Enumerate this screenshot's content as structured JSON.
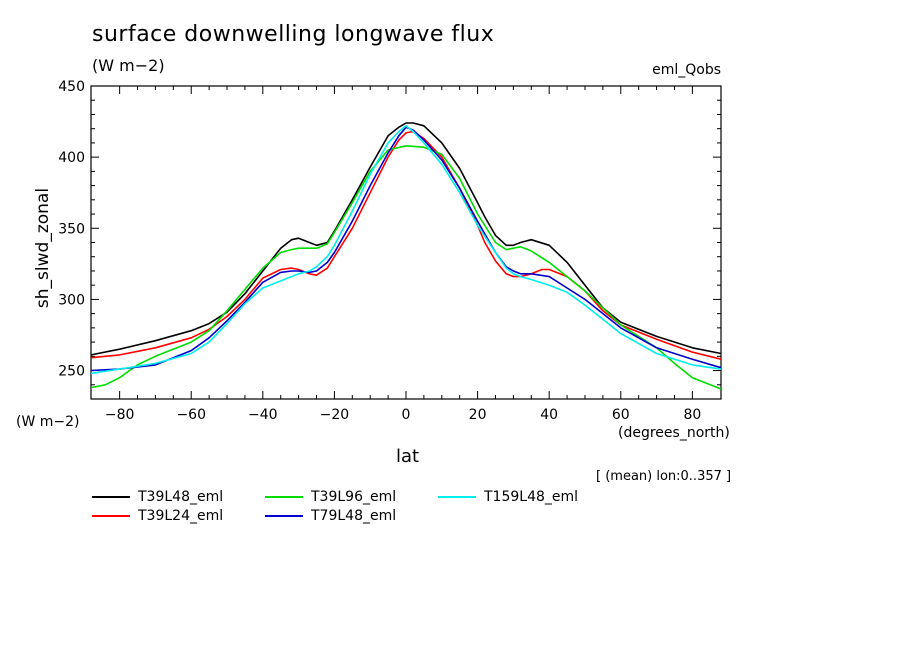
{
  "header": {
    "title": "surface downwelling longwave flux",
    "units": "(W m−2)",
    "dataset": "eml_Qobs",
    "note": "[ (mean) lon:0..357 ]"
  },
  "chart_data": {
    "type": "line",
    "title": "surface downwelling longwave flux",
    "xlabel": "lat",
    "xlabel_units": "(degrees_north)",
    "ylabel": "sh_slwd_zonal",
    "ylabel_units": "(W m−2)",
    "xlim": [
      -88,
      88
    ],
    "ylim": [
      230,
      450
    ],
    "xticks": [
      -80,
      -60,
      -40,
      -20,
      0,
      20,
      40,
      60,
      80
    ],
    "yticks": [
      250,
      300,
      350,
      400,
      450
    ],
    "grid": false,
    "legend_position": "bottom",
    "series": [
      {
        "name": "T39L48_eml",
        "color": "#000000",
        "x": [
          -88,
          -80,
          -70,
          -60,
          -55,
          -50,
          -45,
          -40,
          -35,
          -32,
          -30,
          -27,
          -25,
          -22,
          -20,
          -15,
          -10,
          -5,
          -2,
          0,
          2,
          5,
          10,
          15,
          20,
          22,
          25,
          28,
          30,
          32,
          35,
          40,
          45,
          50,
          55,
          60,
          70,
          80,
          88
        ],
        "y": [
          261,
          265,
          271,
          278,
          283,
          291,
          304,
          320,
          336,
          342,
          343,
          340,
          338,
          340,
          348,
          370,
          393,
          415,
          421,
          424,
          424,
          422,
          410,
          392,
          368,
          358,
          345,
          338,
          338,
          340,
          342,
          338,
          326,
          310,
          294,
          284,
          274,
          266,
          262
        ]
      },
      {
        "name": "T39L24_eml",
        "color": "#ff0000",
        "x": [
          -88,
          -80,
          -70,
          -60,
          -55,
          -50,
          -45,
          -40,
          -35,
          -32,
          -30,
          -27,
          -25,
          -22,
          -20,
          -15,
          -10,
          -5,
          -2,
          0,
          2,
          5,
          10,
          15,
          20,
          22,
          25,
          28,
          30,
          32,
          35,
          38,
          40,
          45,
          50,
          55,
          60,
          70,
          80,
          88
        ],
        "y": [
          259,
          261,
          266,
          273,
          279,
          288,
          300,
          315,
          321,
          322,
          321,
          318,
          317,
          322,
          330,
          350,
          375,
          400,
          412,
          417,
          418,
          413,
          400,
          378,
          352,
          340,
          327,
          318,
          316,
          316,
          318,
          321,
          321,
          316,
          306,
          292,
          282,
          272,
          263,
          258
        ]
      },
      {
        "name": "T39L96_eml",
        "color": "#00dd00",
        "x": [
          -88,
          -84,
          -80,
          -75,
          -70,
          -60,
          -55,
          -50,
          -45,
          -40,
          -35,
          -32,
          -30,
          -28,
          -25,
          -22,
          -20,
          -15,
          -10,
          -5,
          0,
          5,
          10,
          15,
          20,
          25,
          28,
          30,
          32,
          35,
          40,
          45,
          50,
          55,
          60,
          70,
          75,
          80,
          85,
          88
        ],
        "y": [
          238,
          240,
          245,
          254,
          260,
          270,
          278,
          292,
          307,
          322,
          333,
          335,
          336,
          336,
          336,
          339,
          347,
          368,
          390,
          405,
          408,
          407,
          402,
          385,
          360,
          340,
          335,
          336,
          337,
          334,
          326,
          316,
          306,
          294,
          282,
          266,
          255,
          245,
          240,
          237
        ]
      },
      {
        "name": "T79L48_eml",
        "color": "#0000cc",
        "x": [
          -88,
          -80,
          -70,
          -60,
          -55,
          -50,
          -45,
          -40,
          -35,
          -32,
          -30,
          -27,
          -25,
          -22,
          -20,
          -15,
          -10,
          -5,
          -2,
          0,
          2,
          5,
          10,
          15,
          20,
          25,
          28,
          30,
          32,
          35,
          40,
          45,
          50,
          55,
          60,
          70,
          80,
          88
        ],
        "y": [
          250,
          251,
          254,
          264,
          273,
          285,
          298,
          312,
          319,
          320,
          320,
          319,
          320,
          326,
          333,
          355,
          380,
          403,
          415,
          421,
          419,
          412,
          398,
          378,
          355,
          333,
          323,
          320,
          318,
          318,
          316,
          308,
          300,
          290,
          280,
          266,
          258,
          252
        ]
      },
      {
        "name": "T159L48_eml",
        "color": "#00eeee",
        "x": [
          -88,
          -80,
          -70,
          -60,
          -55,
          -50,
          -45,
          -40,
          -35,
          -32,
          -30,
          -27,
          -25,
          -22,
          -20,
          -15,
          -10,
          -5,
          -2,
          0,
          2,
          5,
          10,
          15,
          20,
          25,
          28,
          30,
          32,
          35,
          40,
          45,
          50,
          55,
          60,
          70,
          80,
          88
        ],
        "y": [
          248,
          251,
          255,
          262,
          270,
          283,
          297,
          308,
          313,
          316,
          318,
          320,
          323,
          330,
          338,
          362,
          388,
          410,
          418,
          422,
          418,
          410,
          395,
          375,
          352,
          333,
          322,
          318,
          316,
          314,
          310,
          305,
          296,
          286,
          276,
          262,
          254,
          251
        ]
      }
    ]
  }
}
